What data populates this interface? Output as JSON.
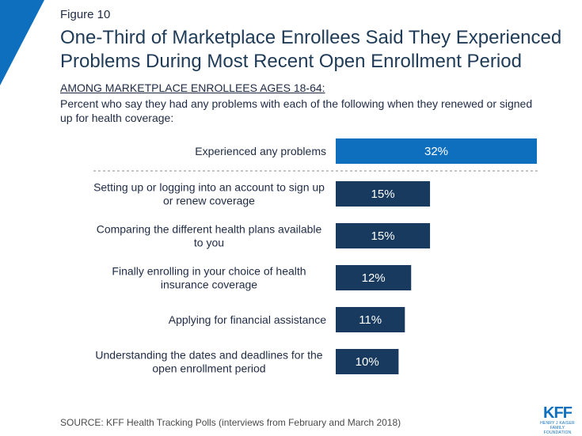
{
  "figure_label": "Figure 10",
  "title": "One-Third of Marketplace Enrollees Said They Experienced Problems During Most Recent Open Enrollment Period",
  "subhead": "AMONG MARKETPLACE ENROLLEES AGES 18-64:",
  "subtitle": "Percent who say they had any problems with each of the following when they renewed or signed up for health coverage:",
  "source": "SOURCE: KFF Health Tracking Polls (interviews from February and March 2018)",
  "logo": {
    "main": "KFF",
    "sub_line1": "HENRY J KAISER",
    "sub_line2": "FAMILY FOUNDATION"
  },
  "colors": {
    "highlight_bar": "#0f6fbf",
    "bar": "#173a5e",
    "corner": "#0f6fbf",
    "label_text": "#1f2a44",
    "value_text": "#ffffff"
  },
  "chart_data": {
    "type": "bar",
    "orientation": "horizontal",
    "categories": [
      [
        "Experienced any problems"
      ],
      [
        "Setting up or logging into an account to sign up",
        "or renew coverage"
      ],
      [
        "Comparing the different health plans available",
        "to you"
      ],
      [
        "Finally enrolling in your choice of health",
        "insurance coverage"
      ],
      [
        "Applying for financial assistance"
      ],
      [
        "Understanding the dates and deadlines for the",
        "open enrollment period"
      ]
    ],
    "values": [
      32,
      15,
      15,
      12,
      11,
      10
    ],
    "value_labels": [
      "32%",
      "15%",
      "15%",
      "12%",
      "11%",
      "10%"
    ],
    "highlight_index": 0,
    "divider_after_index": 0,
    "xlim": [
      0,
      32
    ],
    "grid": false,
    "legend": "none"
  }
}
